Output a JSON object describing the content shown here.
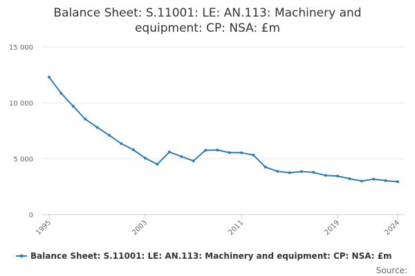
{
  "chart_data": {
    "type": "line",
    "title_lines": [
      "Balance Sheet: S.11001: LE: AN.113: Machinery and",
      "equipment: CP: NSA: £m"
    ],
    "xlabel": "",
    "ylabel": "",
    "x_tick_labels": [
      "1995",
      "2003",
      "2011",
      "2019",
      "2024"
    ],
    "y_tick_labels": [
      "0",
      "5 000",
      "10 000",
      "15 000"
    ],
    "y_ticks": [
      0,
      5000,
      10000,
      15000
    ],
    "ylim": [
      0,
      15000
    ],
    "xlim": [
      1995,
      2024
    ],
    "grid": true,
    "legend_position": "bottom",
    "color": "#2a7db8",
    "x": [
      1995,
      1996,
      1997,
      1998,
      1999,
      2000,
      2001,
      2002,
      2003,
      2004,
      2005,
      2006,
      2007,
      2008,
      2009,
      2010,
      2011,
      2012,
      2013,
      2014,
      2015,
      2016,
      2017,
      2018,
      2019,
      2020,
      2021,
      2022,
      2023,
      2024
    ],
    "series": [
      {
        "name": "Balance Sheet: S.11001: LE: AN.113: Machinery and equipment: CP: NSA: £m",
        "values": [
          12300,
          10850,
          9700,
          8550,
          7800,
          7100,
          6350,
          5800,
          5050,
          4500,
          5600,
          5200,
          4800,
          5750,
          5780,
          5550,
          5530,
          5330,
          4250,
          3870,
          3750,
          3850,
          3780,
          3500,
          3450,
          3210,
          3000,
          3170,
          3040,
          2940
        ]
      }
    ]
  },
  "source_label": "Source:"
}
